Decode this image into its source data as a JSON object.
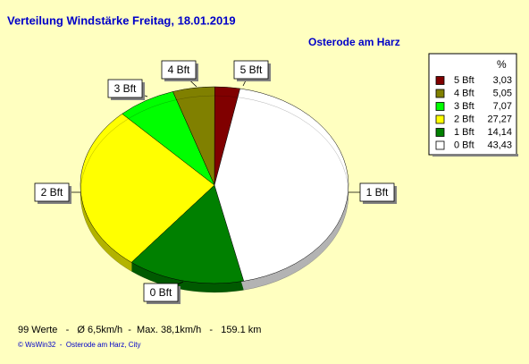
{
  "chart_data": {
    "type": "pie",
    "title": "Verteilung Windstärke  Freitag, 18.01.2019",
    "subtitle": "Osterode am Harz",
    "legend_header": "%",
    "categories": [
      "5 Bft",
      "4 Bft",
      "3 Bft",
      "2 Bft",
      "1 Bft",
      "0 Bft"
    ],
    "values": [
      3.03,
      5.05,
      7.07,
      27.27,
      14.14,
      43.43
    ],
    "value_labels": [
      "3,03",
      "5,05",
      "7,07",
      "27,27",
      "14,14",
      "43,43"
    ],
    "colors": [
      "#800000",
      "#808000",
      "#00ff00",
      "#ffff00",
      "#008000",
      "#ffffff"
    ],
    "footer": "99 Werte   -   Ø 6,5km/h  -  Max. 38,1km/h   -   159.1 km",
    "credit": "© WsWin32  -  Osterode am Harz, City"
  }
}
